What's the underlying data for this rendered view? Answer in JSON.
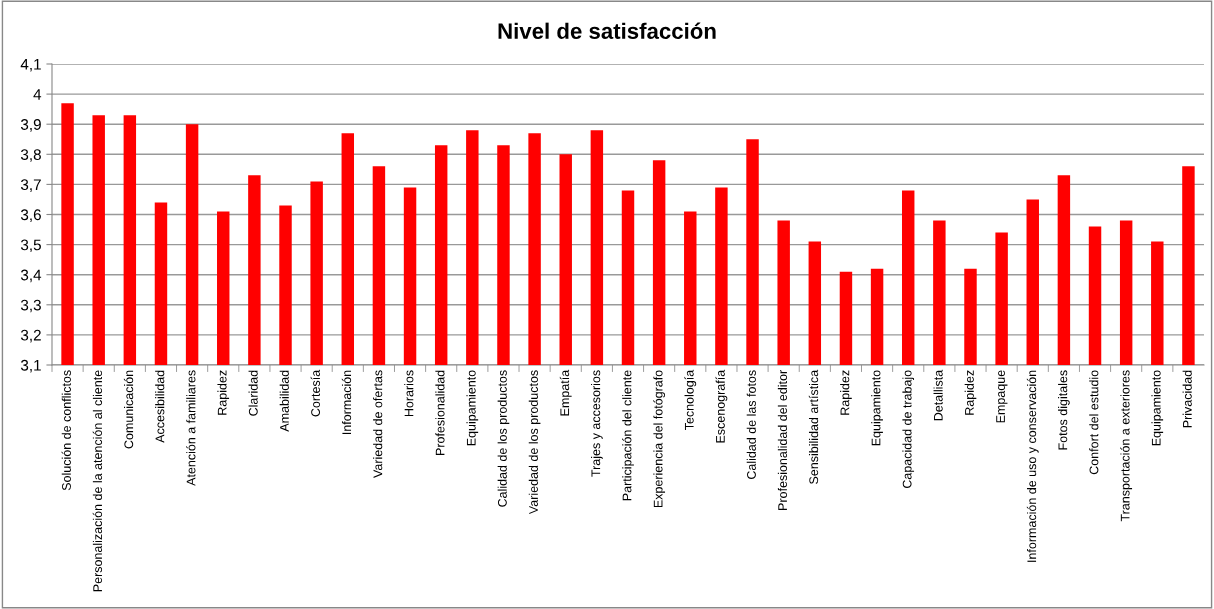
{
  "chart_data": {
    "type": "bar",
    "title": "Nivel de satisfacción",
    "categories": [
      "Solución de conflictos",
      "Personalización de la atención al cliente",
      "Comunicación",
      "Accesibilidad",
      "Atención a familiares",
      "Rapidez",
      "Claridad",
      "Amabilidad",
      "Cortesía",
      "Información",
      "Variedad de ofertas",
      "Horarios",
      "Profesionalidad",
      "Equipamiento",
      "Calidad de los productos",
      "Variedad de los productos",
      "Empatía",
      "Trajes y accesorios",
      "Participación del cliente",
      "Experiencia del fotógrafo",
      "Tecnología",
      "Escenografía",
      "Calidad de las fotos",
      "Profesionalidad del editor",
      "Sensibilidad artística",
      "Rapidez",
      "Equipamiento",
      "Capacidad de trabajo",
      "Detallista",
      "Rapidez",
      "Empaque",
      "Información de uso y conservación",
      "Fotos digitales",
      "Confort del estudio",
      "Transportación a exteriores",
      "Equipamiento",
      "Privacidad"
    ],
    "values": [
      3.97,
      3.93,
      3.93,
      3.64,
      3.9,
      3.61,
      3.73,
      3.63,
      3.71,
      3.87,
      3.76,
      3.69,
      3.83,
      3.88,
      3.83,
      3.87,
      3.8,
      3.88,
      3.68,
      3.78,
      3.61,
      3.69,
      3.85,
      3.58,
      3.51,
      3.41,
      3.42,
      3.68,
      3.58,
      3.42,
      3.54,
      3.65,
      3.73,
      3.56,
      3.58,
      3.51,
      3.76
    ],
    "color": "#ff0000",
    "ylim": [
      3.1,
      4.1
    ],
    "yticks": [
      {
        "value": 3.1,
        "label": "3,1"
      },
      {
        "value": 3.2,
        "label": "3,2"
      },
      {
        "value": 3.3,
        "label": "3,3"
      },
      {
        "value": 3.4,
        "label": "3,4"
      },
      {
        "value": 3.5,
        "label": "3,5"
      },
      {
        "value": 3.6,
        "label": "3,6"
      },
      {
        "value": 3.7,
        "label": "3,7"
      },
      {
        "value": 3.8,
        "label": "3,8"
      },
      {
        "value": 3.9,
        "label": "3,9"
      },
      {
        "value": 4,
        "label": "4"
      },
      {
        "value": 4.1,
        "label": "4,1"
      }
    ],
    "grid": "y"
  }
}
